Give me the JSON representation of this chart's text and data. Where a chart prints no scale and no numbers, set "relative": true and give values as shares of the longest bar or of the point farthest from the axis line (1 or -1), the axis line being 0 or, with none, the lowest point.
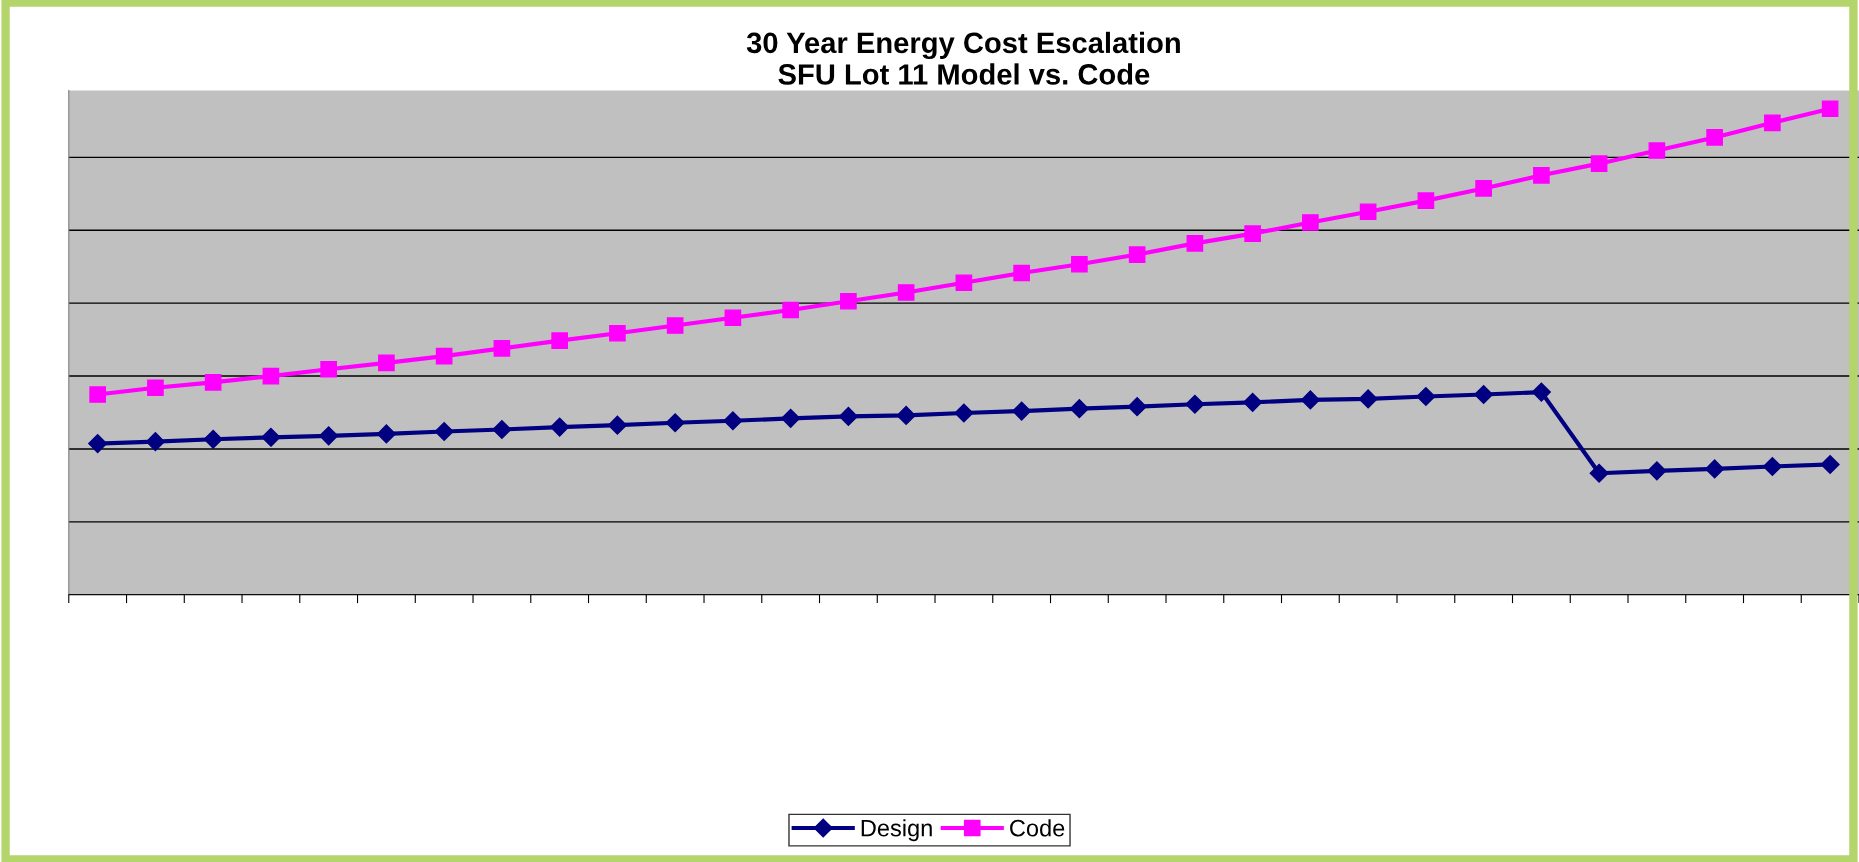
{
  "chart_data": {
    "type": "line",
    "title": "30 Year Energy Cost Escalation\nSFU Lot 11 Model vs. Code",
    "relative": true,
    "grid": "y",
    "legend": "bottom",
    "tick_labels": false,
    "line_style": "solid",
    "categories": [
      null,
      null,
      null,
      null,
      null,
      null,
      null,
      null,
      null,
      null,
      null,
      null,
      null,
      null,
      null,
      null,
      null,
      null,
      null,
      null,
      null,
      null,
      null,
      null,
      null,
      null,
      null,
      null,
      null,
      null,
      null
    ],
    "series": [
      {
        "name": "Design",
        "color": "#000080",
        "marker": "diamond",
        "values": [
          0.311,
          0.315,
          0.32,
          0.324,
          0.327,
          0.331,
          0.336,
          0.34,
          0.345,
          0.349,
          0.354,
          0.358,
          0.363,
          0.367,
          0.369,
          0.374,
          0.378,
          0.383,
          0.387,
          0.392,
          0.396,
          0.401,
          0.403,
          0.408,
          0.412,
          0.417,
          0.25,
          0.255,
          0.259,
          0.264,
          0.268
        ]
      },
      {
        "name": "Code",
        "color": "#ff00ff",
        "marker": "square",
        "values": [
          0.412,
          0.426,
          0.437,
          0.45,
          0.464,
          0.477,
          0.491,
          0.507,
          0.523,
          0.538,
          0.554,
          0.57,
          0.586,
          0.604,
          0.622,
          0.642,
          0.662,
          0.68,
          0.7,
          0.723,
          0.743,
          0.766,
          0.788,
          0.811,
          0.836,
          0.863,
          0.887,
          0.914,
          0.941,
          0.971,
          1.0
        ]
      }
    ]
  }
}
